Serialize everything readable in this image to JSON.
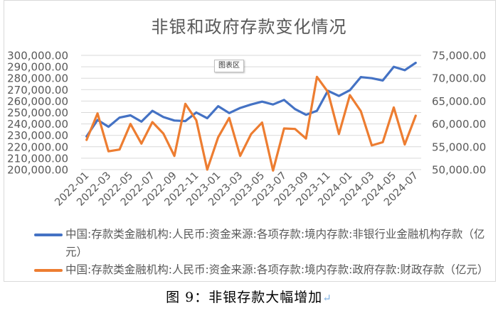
{
  "chart_data": {
    "type": "line",
    "title": "非银和政府存款变化情况",
    "chart_area_label": "图表区",
    "x": [
      "2022-01",
      "2022-02",
      "2022-03",
      "2022-04",
      "2022-05",
      "2022-06",
      "2022-07",
      "2022-08",
      "2022-09",
      "2022-10",
      "2022-11",
      "2022-12",
      "2023-01",
      "2023-02",
      "2023-03",
      "2023-04",
      "2023-05",
      "2023-06",
      "2023-07",
      "2023-08",
      "2023-09",
      "2023-10",
      "2023-11",
      "2023-12",
      "2024-01",
      "2024-02",
      "2024-03",
      "2024-04",
      "2024-05",
      "2024-06",
      "2024-07"
    ],
    "x_tick_labels": [
      "2022-01",
      "2022-03",
      "2022-05",
      "2022-07",
      "2022-09",
      "2022-11",
      "2023-01",
      "2023-03",
      "2023-05",
      "2023-07",
      "2023-09",
      "2023-11",
      "2024-01",
      "2024-03",
      "2024-05",
      "2024-07"
    ],
    "y_left": {
      "min": 200000,
      "max": 300000,
      "step": 10000,
      "tick_labels": [
        "200,000.00",
        "210,000.00",
        "220,000.00",
        "230,000.00",
        "240,000.00",
        "250,000.00",
        "260,000.00",
        "270,000.00",
        "280,000.00",
        "290,000.00",
        "300,000.00"
      ]
    },
    "y_right": {
      "min": 50000,
      "max": 75000,
      "step": 5000,
      "tick_labels": [
        "50,000.00",
        "55,000.00",
        "60,000.00",
        "65,000.00",
        "70,000.00",
        "75,000.00"
      ]
    },
    "series": [
      {
        "name": "中国:存款类金融机构:人民币:资金来源:各项存款:境内存款:非银行业金融机构存款（亿元）",
        "axis": "left",
        "color": "#4472c4",
        "values": [
          229000,
          243500,
          237500,
          245500,
          247500,
          242000,
          251500,
          246000,
          243000,
          242500,
          250000,
          245000,
          255500,
          249500,
          254000,
          257000,
          259500,
          257000,
          261000,
          253000,
          248000,
          251500,
          269000,
          264500,
          269500,
          281000,
          280000,
          278000,
          290000,
          287000,
          293500
        ]
      },
      {
        "name": "中国:存款类金融机构:人民币:资金来源:各项存款:境内存款:政府存款:财政存款（亿元）",
        "axis": "right",
        "color": "#ed7d31",
        "values": [
          56500,
          62300,
          54000,
          54400,
          60000,
          55700,
          60400,
          57900,
          53000,
          64400,
          60800,
          50000,
          57100,
          61300,
          53000,
          57800,
          60300,
          49800,
          59000,
          58900,
          56800,
          70300,
          67000,
          57800,
          66300,
          62800,
          55300,
          56000,
          63600,
          55500,
          61800
        ]
      }
    ],
    "grid": true,
    "legend": "bottom"
  },
  "caption": {
    "text": "图 9：非银存款大幅增加",
    "mark": "↵"
  }
}
